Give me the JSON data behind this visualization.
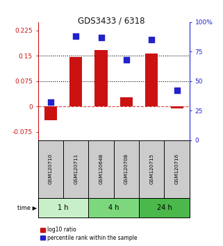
{
  "title": "GDS3433 / 6318",
  "samples": [
    "GSM120710",
    "GSM120711",
    "GSM120648",
    "GSM120708",
    "GSM120715",
    "GSM120716"
  ],
  "log10_ratio": [
    -0.04,
    0.147,
    0.168,
    0.028,
    0.157,
    -0.005
  ],
  "percentile_rank": [
    32,
    88,
    87,
    68,
    85,
    42
  ],
  "time_groups": [
    {
      "label": "1 h",
      "start": 0,
      "end": 2,
      "color": "#c8f0c8"
    },
    {
      "label": "4 h",
      "start": 2,
      "end": 4,
      "color": "#7dd87d"
    },
    {
      "label": "24 h",
      "start": 4,
      "end": 6,
      "color": "#4ab84a"
    }
  ],
  "bar_color": "#cc1111",
  "dot_color": "#2222cc",
  "left_ylim": [
    -0.1,
    0.25
  ],
  "right_ylim": [
    0,
    100
  ],
  "left_yticks": [
    -0.075,
    0,
    0.075,
    0.15,
    0.225
  ],
  "right_yticks": [
    0,
    25,
    50,
    75,
    100
  ],
  "hline_values": [
    0.075,
    0.15
  ],
  "legend_red": "log10 ratio",
  "legend_blue": "percentile rank within the sample",
  "title_color": "#111111",
  "left_tick_color": "#cc1111",
  "right_tick_color": "#2222cc",
  "bar_width": 0.5,
  "dot_size": 30,
  "label_bg": "#cccccc"
}
